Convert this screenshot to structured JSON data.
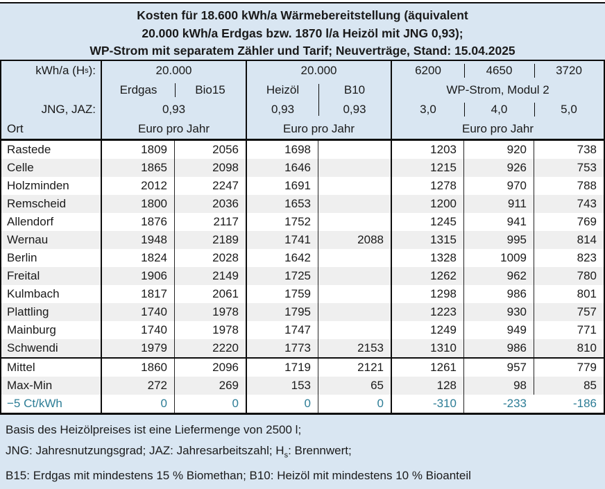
{
  "colors": {
    "panel_blue": "#d9e6f2",
    "stripe_gray": "#efefef",
    "teal_text": "#2d7d96",
    "border_black": "#0c0c0c"
  },
  "title": {
    "lines": [
      "Kosten für 18.600 kWh/a Wärmebereitstellung (äquivalent",
      "20.000 kWh/a Erdgas bzw. 1870 l/a Heizöl mit JNG 0,93);",
      "WP-Strom mit separatem Zähler und Tarif; Neuverträge, Stand: 15.04.2025"
    ]
  },
  "header": {
    "row1": {
      "label_pre": "kWh/a (H",
      "label_sub": "s",
      "label_post": "):",
      "gas_kwh": "20.000",
      "oil_kwh": "20.000",
      "wp1_kwh": "6200",
      "wp2_kwh": "4650",
      "wp3_kwh": "3720"
    },
    "row2": {
      "gas": "Erdgas",
      "bio": "Bio15",
      "oil": "Heizöl",
      "b10": "B10",
      "wp": "WP-Strom, Modul 2"
    },
    "row3": {
      "label": "JNG, JAZ:",
      "gas_jng": "0,93",
      "oil_jng": "0,93",
      "b10_jng": "0,93",
      "wp1_jaz": "3,0",
      "wp2_jaz": "4,0",
      "wp3_jaz": "5,0"
    },
    "row4": {
      "label": "Ort",
      "unit_gas": "Euro pro Jahr",
      "unit_oil": "Euro pro Jahr",
      "unit_wp": "Euro pro Jahr"
    }
  },
  "rows": [
    {
      "ort": "Rastede",
      "values": [
        "1809",
        "2056",
        "1698",
        "",
        "1203",
        "920",
        "738"
      ]
    },
    {
      "ort": "Celle",
      "values": [
        "1865",
        "2098",
        "1646",
        "",
        "1215",
        "926",
        "753"
      ]
    },
    {
      "ort": "Holzminden",
      "values": [
        "2012",
        "2247",
        "1691",
        "",
        "1278",
        "970",
        "788"
      ]
    },
    {
      "ort": "Remscheid",
      "values": [
        "1800",
        "2036",
        "1653",
        "",
        "1200",
        "911",
        "743"
      ]
    },
    {
      "ort": "Allendorf",
      "values": [
        "1876",
        "2117",
        "1752",
        "",
        "1245",
        "941",
        "769"
      ]
    },
    {
      "ort": "Wernau",
      "values": [
        "1948",
        "2189",
        "1741",
        "2088",
        "1315",
        "995",
        "814"
      ]
    },
    {
      "ort": "Berlin",
      "values": [
        "1824",
        "2028",
        "1642",
        "",
        "1328",
        "1009",
        "823"
      ]
    },
    {
      "ort": "Freital",
      "values": [
        "1906",
        "2149",
        "1725",
        "",
        "1262",
        "962",
        "780"
      ]
    },
    {
      "ort": "Kulmbach",
      "values": [
        "1817",
        "2061",
        "1759",
        "",
        "1298",
        "986",
        "801"
      ]
    },
    {
      "ort": "Plattling",
      "values": [
        "1740",
        "1978",
        "1795",
        "",
        "1223",
        "930",
        "757"
      ]
    },
    {
      "ort": "Mainburg",
      "values": [
        "1740",
        "1978",
        "1747",
        "",
        "1249",
        "949",
        "771"
      ]
    },
    {
      "ort": "Schwendi",
      "values": [
        "1979",
        "2220",
        "1773",
        "2153",
        "1310",
        "986",
        "810"
      ]
    },
    {
      "ort": "Mittel",
      "values": [
        "1860",
        "2096",
        "1719",
        "2121",
        "1261",
        "957",
        "779"
      ]
    },
    {
      "ort": "Max-Min",
      "values": [
        "272",
        "269",
        "153",
        "65",
        "128",
        "98",
        "85"
      ]
    },
    {
      "ort": "−5 Ct/kWh",
      "values": [
        "0",
        "0",
        "0",
        "0",
        "-310",
        "-233",
        "-186"
      ]
    }
  ],
  "footnotes": {
    "line1": "Basis des Heizölpreises ist eine Liefermenge von 2500 l;",
    "line2_pre": "JNG: Jahresnutzungsgrad; JAZ: Jahresarbeitszahl; H",
    "line2_sub": "s",
    "line2_post": ": Brennwert;",
    "line3": "B15: Erdgas mit mindestens 15 % Biomethan; B10: Heizöl mit mindestens 10 % Bioanteil"
  },
  "chart_data": {
    "type": "table",
    "title": "Kosten für 18.600 kWh/a Wärmebereitstellung (äquivalent 20.000 kWh/a Erdgas bzw. 1870 l/a Heizöl mit JNG 0,93); WP-Strom mit separatem Zähler und Tarif; Neuverträge, Stand: 15.04.2025",
    "unit": "Euro pro Jahr",
    "columns": [
      "Ort",
      "Erdgas (20.000 kWh/a Hs, JNG 0,93)",
      "Bio15 (20.000 kWh/a Hs, JNG 0,93)",
      "Heizöl (20.000 kWh/a Hs, JNG 0,93)",
      "B10 (20.000 kWh/a Hs, JNG 0,93)",
      "WP-Strom, Modul 2 (6200 kWh/a, JAZ 3,0)",
      "WP-Strom, Modul 2 (4650 kWh/a, JAZ 4,0)",
      "WP-Strom, Modul 2 (3720 kWh/a, JAZ 5,0)"
    ],
    "rows": [
      [
        "Rastede",
        1809,
        2056,
        1698,
        null,
        1203,
        920,
        738
      ],
      [
        "Celle",
        1865,
        2098,
        1646,
        null,
        1215,
        926,
        753
      ],
      [
        "Holzminden",
        2012,
        2247,
        1691,
        null,
        1278,
        970,
        788
      ],
      [
        "Remscheid",
        1800,
        2036,
        1653,
        null,
        1200,
        911,
        743
      ],
      [
        "Allendorf",
        1876,
        2117,
        1752,
        null,
        1245,
        941,
        769
      ],
      [
        "Wernau",
        1948,
        2189,
        1741,
        2088,
        1315,
        995,
        814
      ],
      [
        "Berlin",
        1824,
        2028,
        1642,
        null,
        1328,
        1009,
        823
      ],
      [
        "Freital",
        1906,
        2149,
        1725,
        null,
        1262,
        962,
        780
      ],
      [
        "Kulmbach",
        1817,
        2061,
        1759,
        null,
        1298,
        986,
        801
      ],
      [
        "Plattling",
        1740,
        1978,
        1795,
        null,
        1223,
        930,
        757
      ],
      [
        "Mainburg",
        1740,
        1978,
        1747,
        null,
        1249,
        949,
        771
      ],
      [
        "Schwendi",
        1979,
        2220,
        1773,
        2153,
        1310,
        986,
        810
      ],
      [
        "Mittel",
        1860,
        2096,
        1719,
        2121,
        1261,
        957,
        779
      ],
      [
        "Max-Min",
        272,
        269,
        153,
        65,
        128,
        98,
        85
      ],
      [
        "−5 Ct/kWh",
        0,
        0,
        0,
        0,
        -310,
        -233,
        -186
      ]
    ]
  }
}
